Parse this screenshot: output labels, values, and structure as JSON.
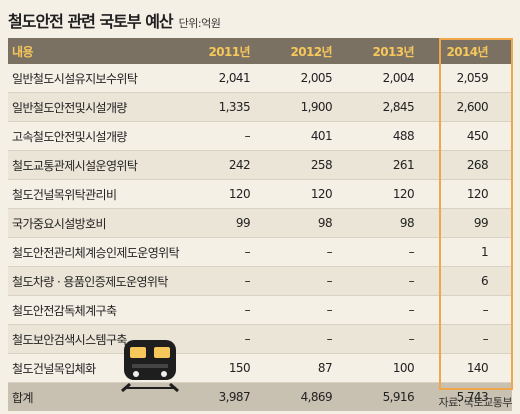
{
  "title": "철도안전 관련 국토부 예산",
  "unit": "단위:억원",
  "source": "자료: 국토교통부",
  "header": [
    "내용",
    "2011년",
    "2012년",
    "2013년",
    "2014년"
  ],
  "rows": [
    [
      "일반철도시설유지보수위탁",
      "2,041",
      "2,005",
      "2,004",
      "2,059"
    ],
    [
      "일반철도안전및시설개량",
      "1,335",
      "1,900",
      "2,845",
      "2,600"
    ],
    [
      "고속철도안전및시설개량",
      "–",
      "401",
      "488",
      "450"
    ],
    [
      "철도교통관제시설운영위탁",
      "242",
      "258",
      "261",
      "268"
    ],
    [
      "철도건널목위탁관리비",
      "120",
      "120",
      "120",
      "120"
    ],
    [
      "국가중요시설방호비",
      "99",
      "98",
      "98",
      "99"
    ],
    [
      "철도안전관리체계승인제도운영위탁",
      "–",
      "–",
      "–",
      "1"
    ],
    [
      "철도차량 · 용품인증제도운영위탁",
      "–",
      "–",
      "–",
      "6"
    ],
    [
      "철도안전감독체계구축",
      "–",
      "–",
      "–",
      "–"
    ],
    [
      "철도보안검색시스템구축",
      "–",
      "–",
      "–",
      "–"
    ],
    [
      "철도건널목입체화",
      "150",
      "87",
      "100",
      "140"
    ]
  ],
  "total": [
    "합계",
    "3,987",
    "4,869",
    "5,916",
    "5,743"
  ],
  "icon": "train-icon",
  "colors": {
    "header_bg": "#7b7163",
    "header_text": "#f6c75a",
    "highlight": "#f0a64a",
    "total_bg": "#c8c0b1",
    "page_bg": "#f5f0e6"
  },
  "chart_data": {
    "type": "table",
    "title": "철도안전 관련 국토부 예산",
    "unit": "단위:억원",
    "columns": [
      "내용",
      "2011년",
      "2012년",
      "2013년",
      "2014년"
    ],
    "categories": [
      "일반철도시설유지보수위탁",
      "일반철도안전및시설개량",
      "고속철도안전및시설개량",
      "철도교통관제시설운영위탁",
      "철도건널목위탁관리비",
      "국가중요시설방호비",
      "철도안전관리체계승인제도운영위탁",
      "철도차량 · 용품인증제도운영위탁",
      "철도안전감독체계구축",
      "철도보안검색시스템구축",
      "철도건널목입체화",
      "합계"
    ],
    "series": [
      {
        "name": "2011년",
        "values": [
          2041,
          1335,
          null,
          242,
          120,
          99,
          null,
          null,
          null,
          null,
          150,
          3987
        ]
      },
      {
        "name": "2012년",
        "values": [
          2005,
          1900,
          401,
          258,
          120,
          98,
          null,
          null,
          null,
          null,
          87,
          4869
        ]
      },
      {
        "name": "2013년",
        "values": [
          2004,
          2845,
          488,
          261,
          120,
          98,
          null,
          null,
          null,
          null,
          100,
          5916
        ]
      },
      {
        "name": "2014년",
        "values": [
          2059,
          2600,
          450,
          268,
          120,
          99,
          1,
          6,
          null,
          null,
          140,
          5743
        ]
      }
    ]
  }
}
